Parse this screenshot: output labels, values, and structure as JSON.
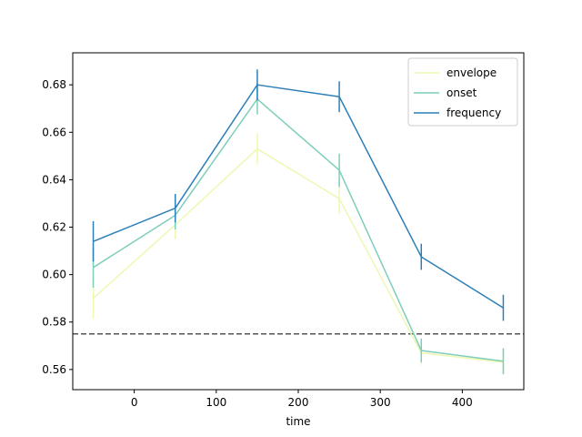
{
  "chart_data": {
    "type": "line",
    "title": "",
    "xlabel": "time",
    "ylabel": "",
    "xlim": [
      -75,
      475
    ],
    "ylim": [
      0.5515,
      0.6935
    ],
    "xticks": [
      0,
      100,
      200,
      300,
      400
    ],
    "yticks": [
      0.56,
      0.58,
      0.6,
      0.62,
      0.64,
      0.66,
      0.68
    ],
    "ytick_labels": [
      "0.56",
      "0.58",
      "0.60",
      "0.62",
      "0.64",
      "0.66",
      "0.68"
    ],
    "x": [
      -50,
      50,
      150,
      250,
      350,
      450
    ],
    "grid": false,
    "legend_position": "top-right",
    "reference_line": {
      "y": 0.575,
      "style": "dashed",
      "color": "#555555"
    },
    "series": [
      {
        "name": "envelope",
        "color": "#edf8b1",
        "values": [
          0.59,
          0.621,
          0.653,
          0.632,
          0.567,
          0.563
        ],
        "errors": [
          0.0085,
          0.006,
          0.0065,
          0.0065,
          0.005,
          0.005
        ]
      },
      {
        "name": "onset",
        "color": "#7fcdbb",
        "values": [
          0.603,
          0.625,
          0.674,
          0.644,
          0.568,
          0.5635
        ],
        "errors": [
          0.0085,
          0.006,
          0.0065,
          0.007,
          0.005,
          0.0055
        ]
      },
      {
        "name": "frequency",
        "color": "#2c7fb8",
        "values": [
          0.614,
          0.628,
          0.68,
          0.675,
          0.6075,
          0.586
        ],
        "errors": [
          0.0085,
          0.006,
          0.0065,
          0.0065,
          0.0055,
          0.0055
        ]
      }
    ]
  }
}
